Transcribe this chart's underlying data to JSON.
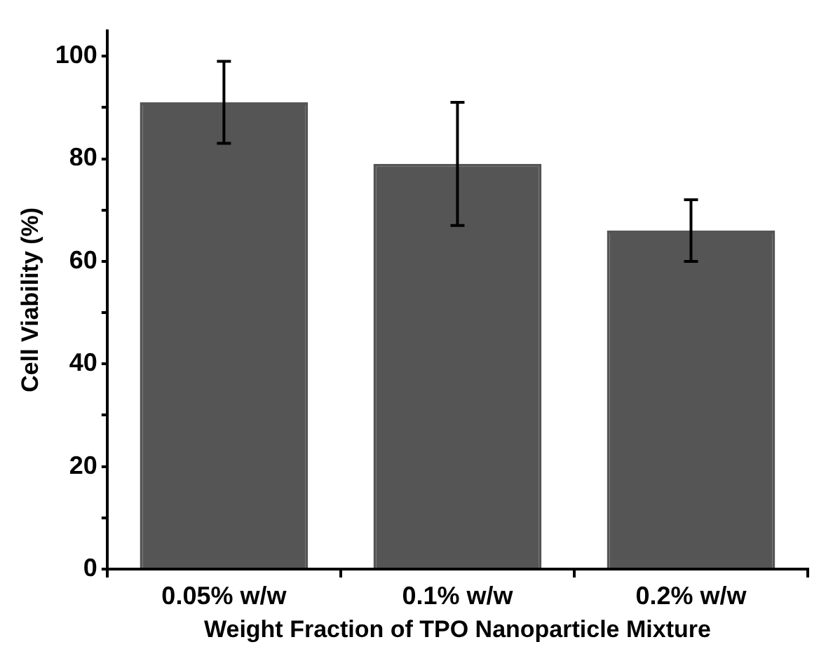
{
  "chart_data": {
    "type": "bar",
    "xlabel": "Weight Fraction of TPO Nanoparticle Mixture",
    "ylabel": "Cell Viability (%)",
    "categories": [
      "0.05% w/w",
      "0.1% w/w",
      "0.2% w/w"
    ],
    "values": [
      91,
      79,
      66
    ],
    "errors": [
      8,
      12,
      6
    ],
    "color": "#555555",
    "ylim": [
      0,
      105
    ],
    "yticks": [
      0,
      {
        "value": 10,
        "label": null
      },
      20,
      {
        "value": 30,
        "label": null
      },
      40,
      {
        "value": 50,
        "label": null
      },
      60,
      {
        "value": 70,
        "label": null
      },
      80,
      {
        "value": 90,
        "label": null
      },
      100
    ],
    "grid": false,
    "legend": false
  }
}
